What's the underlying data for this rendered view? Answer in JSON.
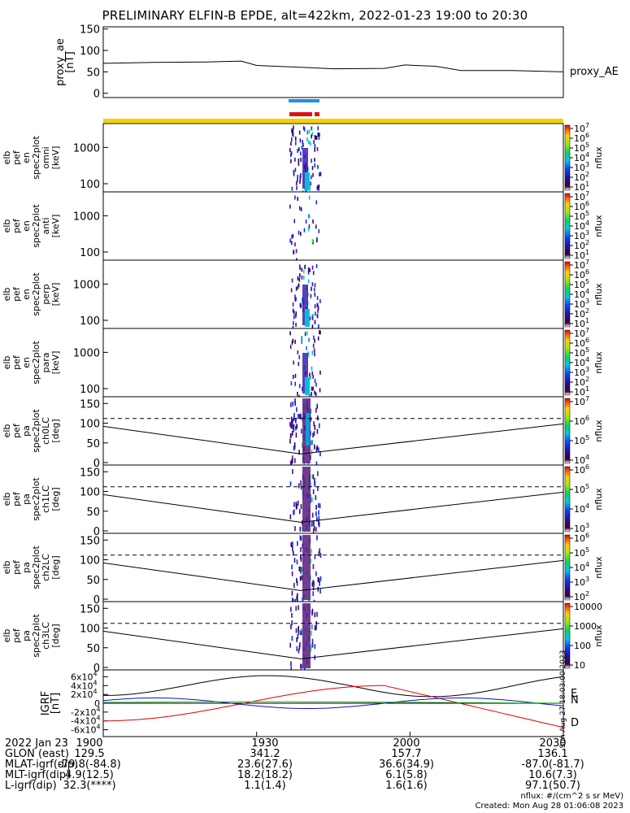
{
  "title": "PRELIMINARY ELFIN-B EPDE, alt=422km, 2022-01-23 19:00 to 20:30",
  "chart_data": [
    {
      "type": "line",
      "panel": "proxy_ae",
      "ylabel_lines": [
        "proxy_ae",
        "[nT]"
      ],
      "yticks": [
        "0",
        "50",
        "100",
        "150"
      ],
      "ylim": [
        -10,
        155
      ],
      "legend": "proxy_AE",
      "series": [
        {
          "name": "proxy_AE",
          "x": [
            "19:00",
            "19:10",
            "19:20",
            "19:27",
            "19:30",
            "19:40",
            "19:45",
            "19:55",
            "19:59",
            "20:05",
            "20:10",
            "20:20",
            "20:30"
          ],
          "values": [
            70,
            72,
            73,
            75,
            65,
            60,
            57,
            58,
            66,
            63,
            53,
            53,
            50
          ]
        }
      ],
      "grid": false
    },
    {
      "type": "heatmap",
      "panel": "elb pef en spec2plot omni",
      "ylabel_lines": [
        "elb",
        "pef",
        "en",
        "spec2plot",
        "omni",
        "[keV]"
      ],
      "yticks": [
        "100",
        "1000"
      ],
      "yscale": "log",
      "colorbar_ticks": [
        "10^1",
        "10^2",
        "10^3",
        "10^4",
        "10^5",
        "10^6",
        "10^7"
      ],
      "colorbar_label": "nflux"
    },
    {
      "type": "heatmap",
      "panel": "elb pef en spec2plot anti",
      "ylabel_lines": [
        "elb",
        "pef",
        "en",
        "spec2plot",
        "anti",
        "[keV]"
      ],
      "yticks": [
        "100",
        "1000"
      ],
      "yscale": "log",
      "colorbar_ticks": [
        "10^1",
        "10^2",
        "10^3",
        "10^4",
        "10^5",
        "10^6",
        "10^7"
      ],
      "colorbar_label": "nflux"
    },
    {
      "type": "heatmap",
      "panel": "elb pef en spec2plot perp",
      "ylabel_lines": [
        "elb",
        "pef",
        "en",
        "spec2plot",
        "perp",
        "[keV]"
      ],
      "yticks": [
        "100",
        "1000"
      ],
      "yscale": "log",
      "colorbar_ticks": [
        "10^1",
        "10^2",
        "10^3",
        "10^4",
        "10^5",
        "10^6",
        "10^7"
      ],
      "colorbar_label": "nflux"
    },
    {
      "type": "heatmap",
      "panel": "elb pef en spec2plot para",
      "ylabel_lines": [
        "elb",
        "pef",
        "en",
        "spec2plot",
        "para",
        "[keV]"
      ],
      "yticks": [
        "100",
        "1000"
      ],
      "yscale": "log",
      "colorbar_ticks": [
        "10^1",
        "10^2",
        "10^3",
        "10^4",
        "10^5",
        "10^6",
        "10^7"
      ],
      "colorbar_label": "nflux"
    },
    {
      "type": "heatmap",
      "panel": "elb pef pa spec2plot ch0LC",
      "ylabel_lines": [
        "elb",
        "pef",
        "pa",
        "spec2plot",
        "ch0LC",
        "[deg]"
      ],
      "yticks": [
        "0",
        "50",
        "100",
        "150"
      ],
      "colorbar_ticks": [
        "10^4",
        "10^5",
        "10^6",
        "10^7"
      ],
      "colorbar_label": "nflux"
    },
    {
      "type": "heatmap",
      "panel": "elb pef pa spec2plot ch1LC",
      "ylabel_lines": [
        "elb",
        "pef",
        "pa",
        "spec2plot",
        "ch1LC",
        "[deg]"
      ],
      "yticks": [
        "0",
        "50",
        "100",
        "150"
      ],
      "colorbar_ticks": [
        "10^3",
        "10^4",
        "10^5",
        "10^6"
      ],
      "colorbar_label": "nflux"
    },
    {
      "type": "heatmap",
      "panel": "elb pef pa spec2plot ch2LC",
      "ylabel_lines": [
        "elb",
        "pef",
        "pa",
        "spec2plot",
        "ch2LC",
        "[deg]"
      ],
      "yticks": [
        "0",
        "50",
        "100",
        "150"
      ],
      "colorbar_ticks": [
        "10^2",
        "10^3",
        "10^4",
        "10^5",
        "10^6"
      ],
      "colorbar_label": "nflux"
    },
    {
      "type": "heatmap",
      "panel": "elb pef pa spec2plot ch3LC",
      "ylabel_lines": [
        "elb",
        "pef",
        "pa",
        "spec2plot",
        "ch3LC",
        "[deg]"
      ],
      "yticks": [
        "0",
        "50",
        "100",
        "150"
      ],
      "colorbar_ticks": [
        "10",
        "100",
        "1000",
        "10000"
      ],
      "colorbar_label": "nflux"
    },
    {
      "type": "line",
      "panel": "IGRF",
      "ylabel_lines": [
        "IGRF",
        "[nT]"
      ],
      "yticks": [
        "-6x10^4",
        "-4x10^4",
        "-2x10^4",
        "0",
        "2x10^4",
        "4x10^4",
        "6x10^4"
      ],
      "series": [
        {
          "name": "D",
          "color": "#e00000"
        },
        {
          "name": "N",
          "color": "#1010d0"
        },
        {
          "name": "E",
          "color": "#20b020"
        }
      ]
    }
  ],
  "ephemeris": {
    "ticks": [
      "1900",
      "1930",
      "2000",
      "2030"
    ],
    "rows": [
      {
        "label": "2022 Jan 23",
        "values": [
          "1900",
          "1930",
          "2000",
          "2030"
        ]
      },
      {
        "label": "GLON (east)",
        "values": [
          "129.5",
          "341.2",
          "157.7",
          "136.1"
        ]
      },
      {
        "label": "MLAT-igrf(dip)",
        "values": [
          "-79.8(-84.8)",
          "23.6(27.6)",
          "36.6(34.9)",
          "-87.0(-81.7)"
        ]
      },
      {
        "label": "MLT-igrf(dip)",
        "values": [
          "4.9(12.5)",
          "18.2(18.2)",
          "6.1(5.8)",
          "10.6(7.3)"
        ]
      },
      {
        "label": "L-igrf(dip)",
        "values": [
          "32.3(****)",
          "1.1(1.4)",
          "1.6(1.6)",
          "97.1(50.7)"
        ]
      }
    ]
  },
  "credit": {
    "units": "nflux: #/(cm^2 s sr MeV)",
    "created": "Created: Mon Aug 28 01:06:08 2023",
    "stamp": "Sun Aug 27 18:03:00 2023"
  },
  "colors": {
    "state_bar": "#f2d200",
    "blue_bar": "#1e8ee8",
    "red_bar": "#e01010"
  }
}
